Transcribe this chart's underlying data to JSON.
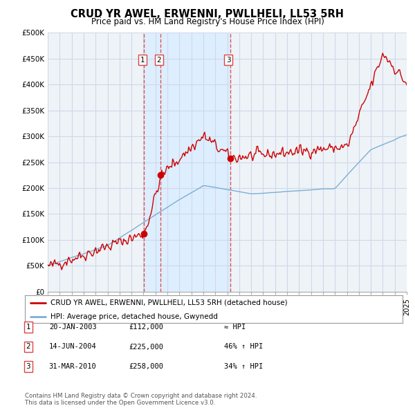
{
  "title": "CRUD YR AWEL, ERWENNI, PWLLHELI, LL53 5RH",
  "subtitle": "Price paid vs. HM Land Registry's House Price Index (HPI)",
  "ylim": [
    0,
    500000
  ],
  "yticks": [
    0,
    50000,
    100000,
    150000,
    200000,
    250000,
    300000,
    350000,
    400000,
    450000,
    500000
  ],
  "ytick_labels": [
    "£0",
    "£50K",
    "£100K",
    "£150K",
    "£200K",
    "£250K",
    "£300K",
    "£350K",
    "£400K",
    "£450K",
    "£500K"
  ],
  "hpi_color": "#7bafd4",
  "price_color": "#cc0000",
  "vline_color": "#dd4444",
  "shade_color": "#ddeeff",
  "legend_line1": "CRUD YR AWEL, ERWENNI, PWLLHELI, LL53 5RH (detached house)",
  "legend_line2": "HPI: Average price, detached house, Gwynedd",
  "transactions": [
    {
      "num": 1,
      "date": "20-JAN-2003",
      "price": 112000,
      "rel": "≈ HPI",
      "x": 2003.05
    },
    {
      "num": 2,
      "date": "14-JUN-2004",
      "price": 225000,
      "rel": "46% ↑ HPI",
      "x": 2004.45
    },
    {
      "num": 3,
      "date": "31-MAR-2010",
      "price": 258000,
      "rel": "34% ↑ HPI",
      "x": 2010.25
    }
  ],
  "footnote": "Contains HM Land Registry data © Crown copyright and database right 2024.\nThis data is licensed under the Open Government Licence v3.0.",
  "background_color": "#ffffff",
  "grid_color": "#d0d8e8",
  "plot_bg_color": "#eef3f8"
}
